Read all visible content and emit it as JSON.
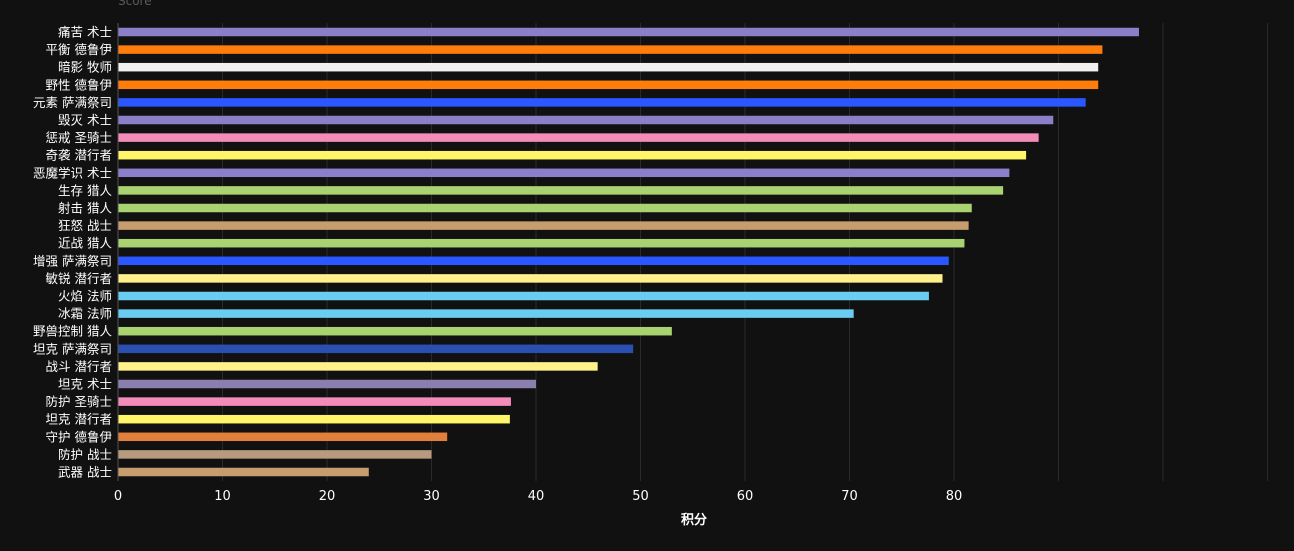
{
  "chart_data": {
    "type": "bar",
    "orientation": "horizontal",
    "title": "",
    "top_label": "Score",
    "xlabel": "积分",
    "ylabel": "",
    "xlim": [
      0,
      110
    ],
    "x_ticks": [
      0,
      10,
      20,
      30,
      40,
      50,
      60,
      70,
      80
    ],
    "grid": true,
    "categories": [
      "痛苦 术士",
      "平衡 德鲁伊",
      "暗影 牧师",
      "野性 德鲁伊",
      "元素 萨满祭司",
      "毁灭 术士",
      "惩戒 圣骑士",
      "奇袭 潜行者",
      "恶魔学识 术士",
      "生存 猎人",
      "射击 猎人",
      "狂怒 战士",
      "近战 猎人",
      "增强 萨满祭司",
      "敏锐 潜行者",
      "火焰 法师",
      "冰霜 法师",
      "野兽控制 猎人",
      "坦克 萨满祭司",
      "战斗 潜行者",
      "坦克 术士",
      "防护 圣骑士",
      "坦克 潜行者",
      "守护 德鲁伊",
      "防护 战士",
      "武器 战士"
    ],
    "values": [
      97.7,
      94.2,
      93.8,
      93.8,
      92.6,
      89.5,
      88.1,
      86.9,
      85.3,
      84.7,
      81.7,
      81.4,
      81.0,
      79.5,
      78.9,
      77.6,
      70.4,
      53.0,
      49.3,
      45.9,
      40.0,
      37.6,
      37.5,
      31.5,
      30.0,
      24.0
    ],
    "colors": [
      "#8b7fc9",
      "#ff7d0a",
      "#f0f0f0",
      "#ff7d0a",
      "#2a57ff",
      "#8b7fc9",
      "#f48cba",
      "#fff569",
      "#8b7fc9",
      "#a9d271",
      "#a9d271",
      "#c79c6e",
      "#a9d271",
      "#2a57ff",
      "#fff08a",
      "#69ccf0",
      "#69ccf0",
      "#a9d271",
      "#2a4fb0",
      "#fff08a",
      "#8b7fb0",
      "#f48cba",
      "#fff569",
      "#e0803a",
      "#b89a7e",
      "#c79c6e"
    ]
  },
  "colors": {
    "background": "#111111",
    "text": "#ffffff",
    "grid": "#2a2a2a",
    "axis": "#555555"
  }
}
